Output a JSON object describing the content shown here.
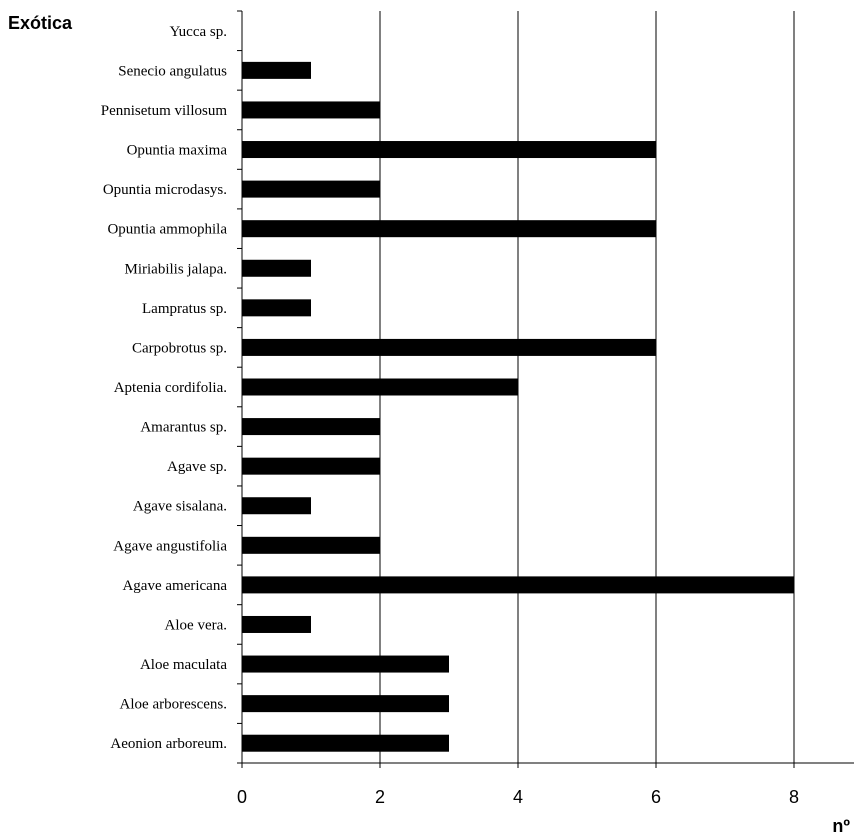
{
  "chart_data": {
    "type": "bar",
    "orientation": "horizontal",
    "title": "Exótica",
    "xlabel": "nº",
    "ylabel": "",
    "xlim": [
      0,
      8
    ],
    "xticks": [
      0,
      2,
      4,
      6,
      8
    ],
    "xtick_labels": [
      "0",
      "2",
      "4",
      "6",
      "8"
    ],
    "grid": "vertical",
    "bar_color": "#000000",
    "categories": [
      "Yucca sp.",
      "Senecio angulatus",
      "Pennisetum villosum",
      "Opuntia maxima",
      "Opuntia microdasys.",
      "Opuntia ammophila",
      "Miriabilis jalapa.",
      "Lampratus sp.",
      "Carpobrotus sp.",
      "Aptenia cordifolia.",
      "Amarantus sp.",
      "Agave sp.",
      "Agave sisalana.",
      "Agave angustifolia",
      "Agave americana",
      "Aloe vera.",
      "Aloe maculata",
      "Aloe arborescens.",
      "Aeonion arboreum."
    ],
    "values": [
      0,
      1,
      2,
      6,
      2,
      6,
      1,
      1,
      6,
      4,
      2,
      2,
      1,
      2,
      8,
      1,
      3,
      3,
      3
    ]
  }
}
